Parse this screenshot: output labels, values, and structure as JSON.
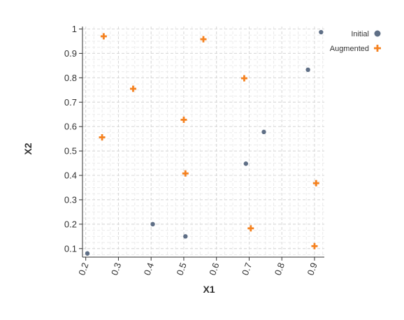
{
  "chart_data": {
    "type": "scatter",
    "title": "",
    "xlabel": "X1",
    "ylabel": "X2",
    "xlim": [
      0.19,
      0.93
    ],
    "ylim": [
      0.065,
      1.01
    ],
    "xticks": [
      "0.2",
      "0.3",
      "0.4",
      "0.5",
      "0.6",
      "0.7",
      "0.8",
      "0.9"
    ],
    "yticks": [
      "0.1",
      "0.2",
      "0.3",
      "0.4",
      "0.5",
      "0.6",
      "0.7",
      "0.8",
      "0.9",
      "1"
    ],
    "grid": true,
    "legend_position": "top-right",
    "series": [
      {
        "name": "Initial",
        "marker": "circle",
        "color": "#5f6f86",
        "points": [
          {
            "x": 0.205,
            "y": 0.08
          },
          {
            "x": 0.405,
            "y": 0.2
          },
          {
            "x": 0.505,
            "y": 0.15
          },
          {
            "x": 0.69,
            "y": 0.448
          },
          {
            "x": 0.745,
            "y": 0.578
          },
          {
            "x": 0.88,
            "y": 0.833
          },
          {
            "x": 0.92,
            "y": 0.987
          }
        ]
      },
      {
        "name": "Augmented",
        "marker": "plus",
        "color": "#f58220",
        "points": [
          {
            "x": 0.255,
            "y": 0.97
          },
          {
            "x": 0.25,
            "y": 0.556
          },
          {
            "x": 0.345,
            "y": 0.755
          },
          {
            "x": 0.5,
            "y": 0.628
          },
          {
            "x": 0.505,
            "y": 0.408
          },
          {
            "x": 0.56,
            "y": 0.958
          },
          {
            "x": 0.685,
            "y": 0.798
          },
          {
            "x": 0.705,
            "y": 0.183
          },
          {
            "x": 0.9,
            "y": 0.11
          },
          {
            "x": 0.905,
            "y": 0.368
          }
        ]
      }
    ]
  }
}
